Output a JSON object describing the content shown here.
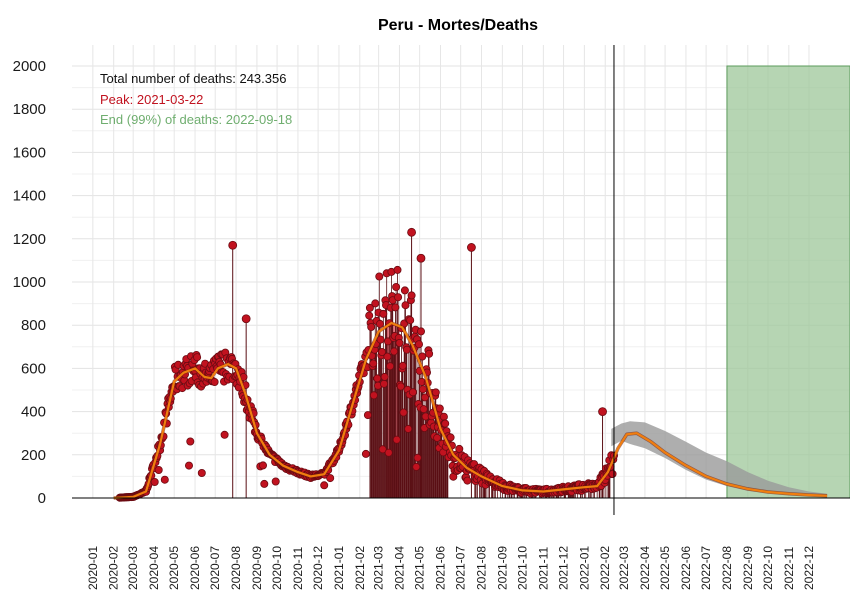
{
  "chart_data": {
    "type": "line",
    "title": "Peru - Mortes/Deaths",
    "xlabel": "",
    "ylabel": "",
    "ylim": [
      0,
      2000
    ],
    "xlim": [
      "2019-12-01",
      "2023-01-31"
    ],
    "yticks": [
      0,
      200,
      400,
      600,
      800,
      1000,
      1200,
      1400,
      1600,
      1800,
      2000
    ],
    "xticks": [
      "2020-01",
      "2020-02",
      "2020-03",
      "2020-04",
      "2020-05",
      "2020-06",
      "2020-07",
      "2020-08",
      "2020-09",
      "2020-10",
      "2020-11",
      "2020-12",
      "2021-01",
      "2021-02",
      "2021-03",
      "2021-04",
      "2021-05",
      "2021-06",
      "2021-07",
      "2021-08",
      "2021-09",
      "2021-10",
      "2021-11",
      "2021-12",
      "2022-01",
      "2022-02",
      "2022-03",
      "2022-04",
      "2022-05",
      "2022-06",
      "2022-07",
      "2022-08",
      "2022-09",
      "2022-10",
      "2022-11",
      "2022-12"
    ],
    "grid": true,
    "annotations": {
      "total": "Total number of deaths: 243.356",
      "peak": "Peak: 2021-03-22",
      "end": "End (99%) of deaths: 2022-09-18"
    },
    "current_date": "2022-02-14",
    "peak_bar": {
      "x_start": "2021-03-13",
      "x_end": "2021-03-31",
      "value": 800
    },
    "end_region": {
      "x_start": "2022-08-01",
      "x_end": "2023-01-31",
      "y_max": 2000
    },
    "smoothed_fit": {
      "x": [
        "2020-02-01",
        "2020-03-01",
        "2020-03-20",
        "2020-04-10",
        "2020-05-01",
        "2020-05-15",
        "2020-06-01",
        "2020-06-15",
        "2020-06-25",
        "2020-07-05",
        "2020-07-20",
        "2020-08-01",
        "2020-08-15",
        "2020-09-01",
        "2020-09-20",
        "2020-10-10",
        "2020-11-01",
        "2020-11-20",
        "2020-12-10",
        "2021-01-01",
        "2021-01-20",
        "2021-02-10",
        "2021-03-01",
        "2021-03-20",
        "2021-04-05",
        "2021-04-20",
        "2021-05-10",
        "2021-06-01",
        "2021-06-20",
        "2021-07-10",
        "2021-08-01",
        "2021-09-01",
        "2021-10-01",
        "2021-11-01",
        "2021-12-01",
        "2022-01-01",
        "2022-01-20",
        "2022-02-05",
        "2022-02-20",
        "2022-03-05",
        "2022-03-20",
        "2022-04-10",
        "2022-05-01",
        "2022-06-01",
        "2022-07-01",
        "2022-08-01",
        "2022-09-01",
        "2022-10-01",
        "2022-11-01",
        "2022-12-01",
        "2022-12-28"
      ],
      "values": [
        0,
        5,
        30,
        250,
        540,
        580,
        600,
        560,
        555,
        600,
        620,
        600,
        480,
        300,
        200,
        150,
        120,
        100,
        110,
        220,
        420,
        640,
        770,
        810,
        790,
        710,
        560,
        320,
        200,
        140,
        100,
        55,
        35,
        30,
        40,
        50,
        55,
        120,
        230,
        295,
        300,
        260,
        210,
        150,
        100,
        65,
        42,
        28,
        20,
        14,
        10
      ]
    },
    "projection_band": {
      "x": [
        "2022-02-10",
        "2022-02-25",
        "2022-03-10",
        "2022-04-01",
        "2022-05-01",
        "2022-06-01",
        "2022-07-01",
        "2022-08-01",
        "2022-09-01",
        "2022-10-01",
        "2022-11-01",
        "2022-12-01",
        "2022-12-28"
      ],
      "lower": [
        240,
        265,
        250,
        230,
        185,
        130,
        85,
        55,
        33,
        22,
        15,
        10,
        5
      ],
      "upper": [
        320,
        345,
        355,
        350,
        310,
        260,
        210,
        170,
        120,
        80,
        50,
        30,
        20
      ]
    },
    "daily_peaks": {
      "x": [
        "2020-07-27",
        "2020-08-16",
        "2021-04-19",
        "2021-05-03",
        "2021-07-17",
        "2022-01-28"
      ],
      "values": [
        1170,
        830,
        1230,
        1110,
        1160,
        400
      ]
    }
  }
}
